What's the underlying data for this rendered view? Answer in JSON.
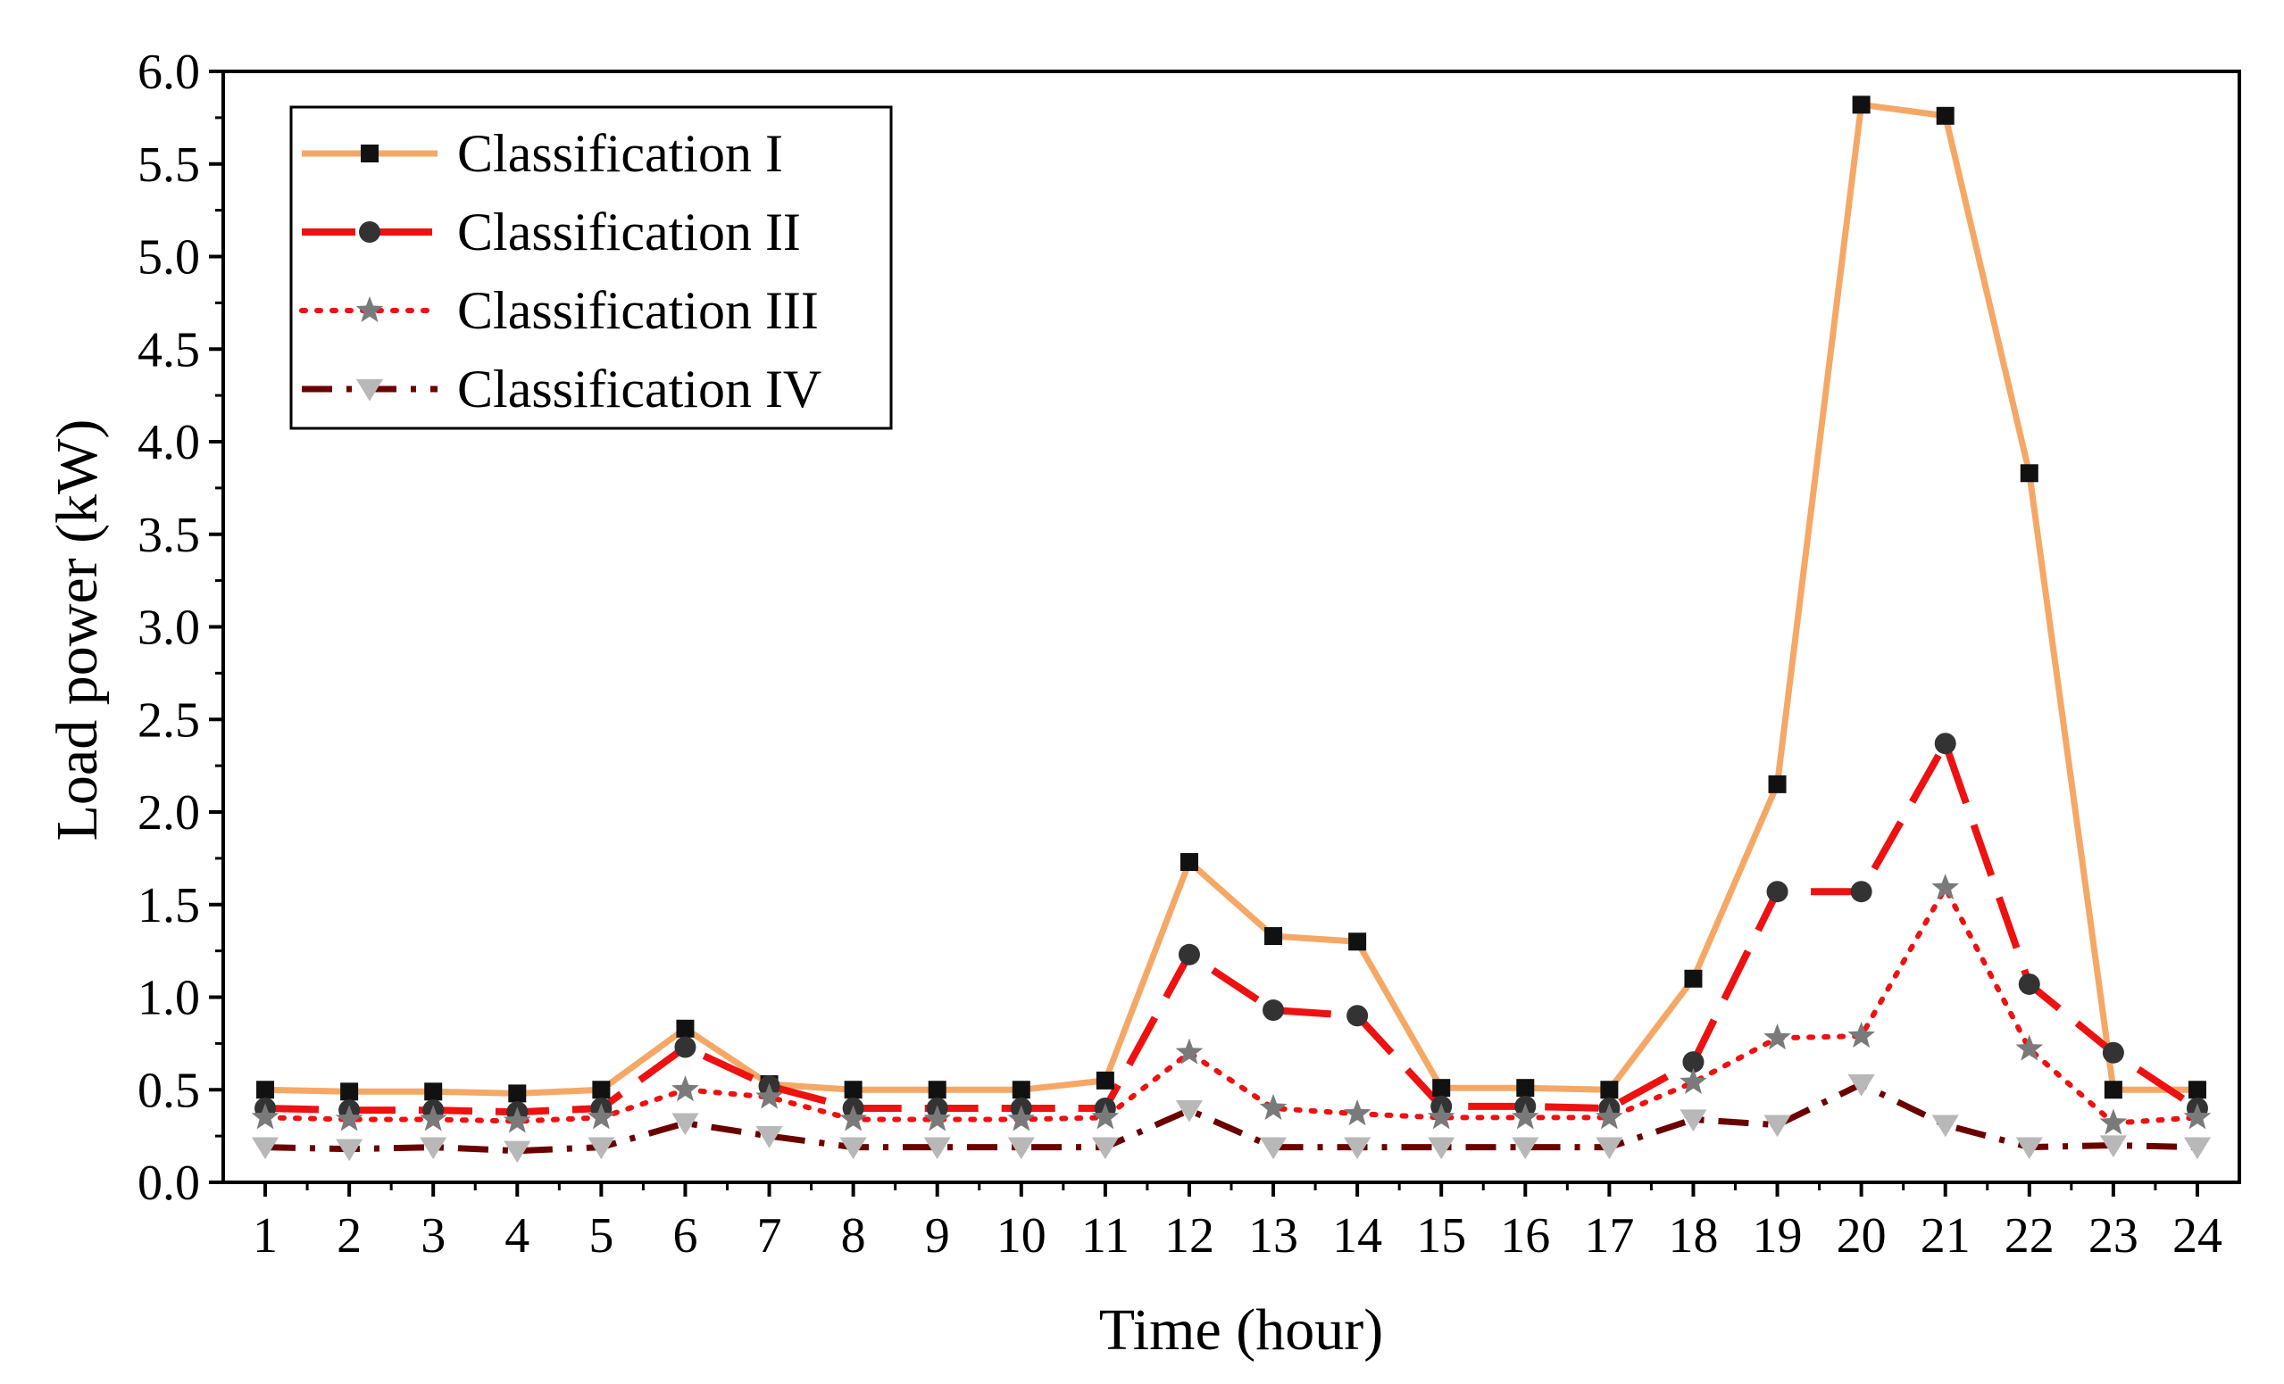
{
  "chart_data": {
    "type": "line",
    "title": "",
    "xlabel": "Time (hour)",
    "ylabel": "Load power (kW)",
    "x": [
      1,
      2,
      3,
      4,
      5,
      6,
      7,
      8,
      9,
      10,
      11,
      12,
      13,
      14,
      15,
      16,
      17,
      18,
      19,
      20,
      21,
      22,
      23,
      24
    ],
    "x_tick_labels": [
      "1",
      "2",
      "3",
      "4",
      "5",
      "6",
      "7",
      "8",
      "9",
      "10",
      "11",
      "12",
      "13",
      "14",
      "15",
      "16",
      "17",
      "18",
      "19",
      "20",
      "21",
      "22",
      "23",
      "24"
    ],
    "ylim": [
      0,
      6
    ],
    "y_ticks": [
      0,
      0.5,
      1,
      1.5,
      2,
      2.5,
      3,
      3.5,
      4,
      4.5,
      5,
      5.5,
      6
    ],
    "y_tick_labels": [
      "0.0",
      "0.5",
      "1.0",
      "1.5",
      "2.0",
      "2.5",
      "3.0",
      "3.5",
      "4.0",
      "4.5",
      "5.0",
      "5.5",
      "6.0"
    ],
    "legend_position": "top-left",
    "grid": false,
    "series": [
      {
        "name": "Classification I",
        "color": "#f5a866",
        "line_style": "solid",
        "marker": "square",
        "marker_color": "#111111",
        "values": [
          0.5,
          0.49,
          0.49,
          0.48,
          0.5,
          0.83,
          0.53,
          0.5,
          0.5,
          0.5,
          0.55,
          1.73,
          1.33,
          1.3,
          0.51,
          0.51,
          0.5,
          1.1,
          2.15,
          5.82,
          5.76,
          3.83,
          0.5,
          0.5
        ]
      },
      {
        "name": "Classification II",
        "color": "#ee1111",
        "line_style": "dashed",
        "marker": "circle",
        "marker_color": "#333333",
        "values": [
          0.4,
          0.39,
          0.39,
          0.38,
          0.4,
          0.73,
          0.52,
          0.4,
          0.4,
          0.4,
          0.4,
          1.23,
          0.93,
          0.9,
          0.41,
          0.41,
          0.4,
          0.65,
          1.57,
          1.57,
          2.37,
          1.07,
          0.7,
          0.4
        ]
      },
      {
        "name": "Classification III",
        "color": "#ee1111",
        "line_style": "dotted",
        "marker": "star",
        "marker_color": "#7a7a7a",
        "values": [
          0.35,
          0.34,
          0.34,
          0.33,
          0.35,
          0.5,
          0.46,
          0.34,
          0.34,
          0.34,
          0.35,
          0.7,
          0.4,
          0.37,
          0.35,
          0.35,
          0.35,
          0.54,
          0.78,
          0.79,
          1.59,
          0.72,
          0.32,
          0.35
        ]
      },
      {
        "name": "Classification IV",
        "color": "#6b0000",
        "line_style": "dash-dot",
        "marker": "triangle-down",
        "marker_color": "#b8b8b8",
        "values": [
          0.19,
          0.18,
          0.19,
          0.17,
          0.19,
          0.32,
          0.25,
          0.19,
          0.19,
          0.19,
          0.19,
          0.39,
          0.19,
          0.19,
          0.19,
          0.19,
          0.19,
          0.34,
          0.31,
          0.53,
          0.31,
          0.19,
          0.2,
          0.19
        ]
      }
    ]
  }
}
